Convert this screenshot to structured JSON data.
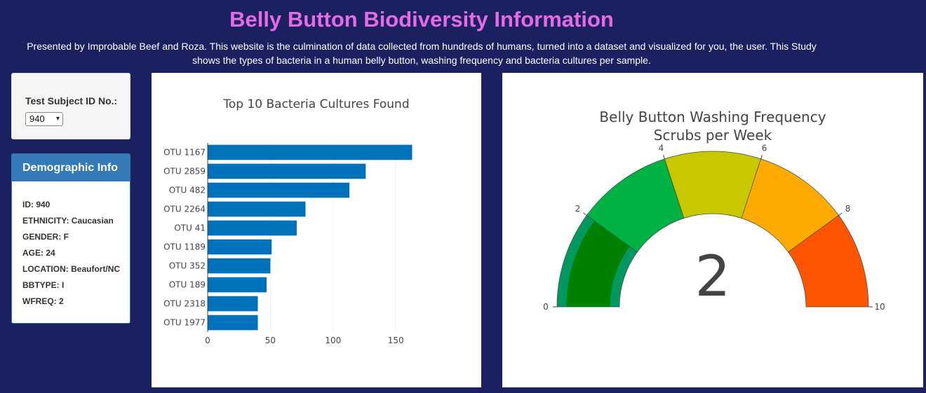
{
  "header": {
    "title": "Belly Button Biodiversity Information",
    "subtitle_line1": "Presented by Improbable Beef and Roza. This website is the culmination of data collected from hundreds of humans, turned into a dataset and visualized for you, the user. This Study",
    "subtitle_line2": "shows the types of bacteria in a human belly button, washing frequency and bacteria cultures per sample."
  },
  "selector": {
    "label": "Test Subject ID No.:",
    "selected": "940"
  },
  "demographics": {
    "heading": "Demographic Info",
    "lines": [
      "ID: 940",
      "ETHNICITY: Caucasian",
      "GENDER: F",
      "AGE: 24",
      "LOCATION: Beaufort/NC",
      "BBTYPE: I",
      "WFREQ: 2"
    ]
  },
  "colors": {
    "background": "#1b2160",
    "title": "#e56be6",
    "panel_header": "#337ab7",
    "bar": "#1f77b4"
  },
  "chart_data": [
    {
      "type": "bar",
      "orientation": "horizontal",
      "title": "Top 10 Bacteria Cultures Found",
      "categories": [
        "OTU 1167",
        "OTU 2859",
        "OTU 482",
        "OTU 2264",
        "OTU 41",
        "OTU 1189",
        "OTU 352",
        "OTU 189",
        "OTU 2318",
        "OTU 1977"
      ],
      "values": [
        163,
        126,
        113,
        78,
        71,
        51,
        50,
        47,
        40,
        40
      ],
      "xticks": [
        0,
        50,
        100,
        150
      ],
      "xlim": [
        0,
        170
      ],
      "grid": true,
      "bar_color": "#0072bb"
    },
    {
      "type": "gauge",
      "title_line1": "Belly Button Washing Frequency",
      "title_line2": "Scrubs per Week",
      "value": 2,
      "display_value": "2",
      "range": [
        0,
        10
      ],
      "ticks": [
        0,
        2,
        4,
        6,
        8,
        10
      ],
      "steps": [
        {
          "from": 0,
          "to": 2,
          "color": "#009a60"
        },
        {
          "from": 2,
          "to": 4,
          "color": "#00b144"
        },
        {
          "from": 4,
          "to": 6,
          "color": "#c8c800"
        },
        {
          "from": 6,
          "to": 8,
          "color": "#ffaa00"
        },
        {
          "from": 8,
          "to": 10,
          "color": "#ff5500"
        }
      ],
      "bar_color": "#008000"
    }
  ]
}
